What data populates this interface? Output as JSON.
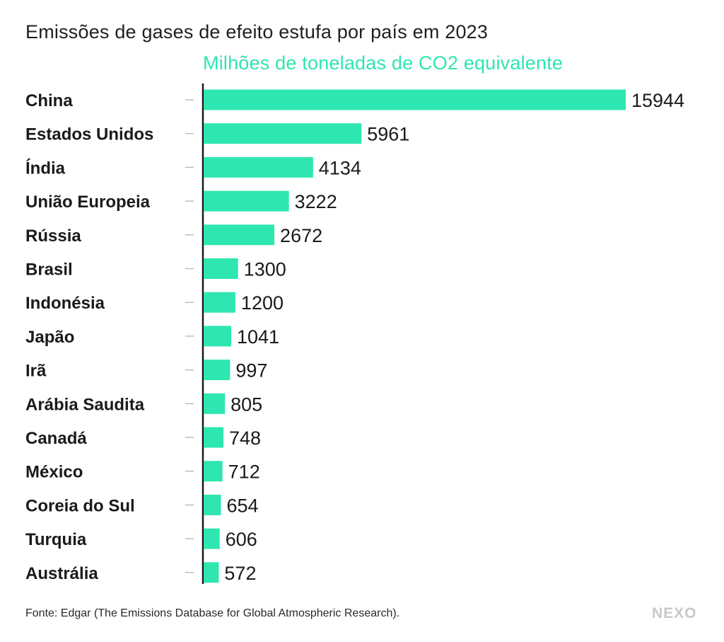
{
  "header": {
    "title": "Emissões de gases de efeito estufa por país em 2023",
    "subtitle": "Milhões de toneladas de CO2 equivalente"
  },
  "footer": {
    "source": "Fonte: Edgar (The Emissions Database for Global Atmospheric Research).",
    "brand": "NEXO"
  },
  "colors": {
    "bar": "#2ee6b0",
    "subtitle": "#2ee6b0",
    "axis": "#1a1a1a",
    "tick": "#bdbdbd",
    "text": "#1a1a1a",
    "brand": "#c9c9c9"
  },
  "chart_data": {
    "type": "bar",
    "orientation": "horizontal",
    "title": "Emissões de gases de efeito estufa por país em 2023",
    "subtitle": "Milhões de toneladas de CO2 equivalente",
    "categories": [
      "China",
      "Estados Unidos",
      "Índia",
      "União Europeia",
      "Rússia",
      "Brasil",
      "Indonésia",
      "Japão",
      "Irã",
      "Arábia Saudita",
      "Canadá",
      "México",
      "Coreia do Sul",
      "Turquia",
      "Austrália"
    ],
    "values": [
      15944,
      5961,
      4134,
      3222,
      2672,
      1300,
      1200,
      1041,
      997,
      805,
      748,
      712,
      654,
      606,
      572
    ],
    "xlim": [
      0,
      15944
    ],
    "grid": false,
    "legend": "none",
    "data_labels": true
  }
}
